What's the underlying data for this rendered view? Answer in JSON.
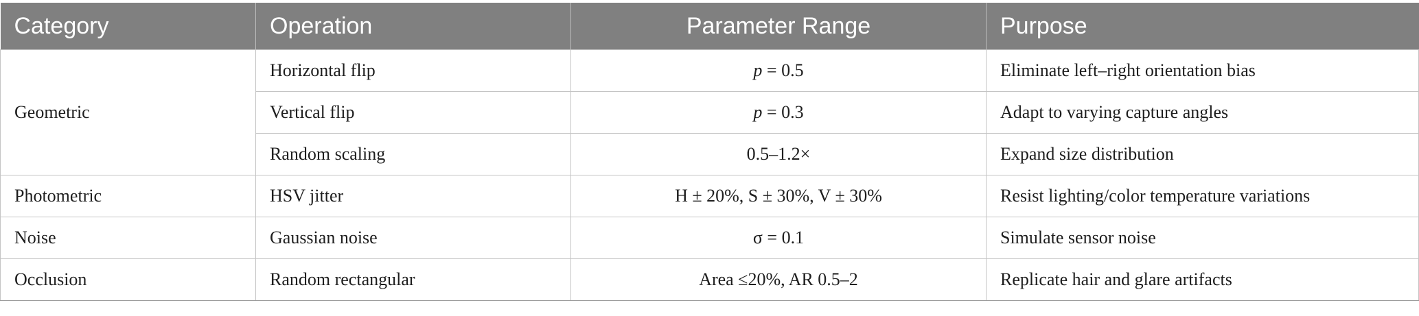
{
  "table": {
    "headers": [
      "Category",
      "Operation",
      "Parameter Range",
      "Purpose"
    ],
    "rows": [
      {
        "category": "Geometric",
        "operation": "Horizontal flip",
        "param_var": "p",
        "param_rest": " = 0.5",
        "purpose": "Eliminate left–right orientation bias"
      },
      {
        "operation": "Vertical flip",
        "param_var": "p",
        "param_rest": " = 0.3",
        "purpose": "Adapt to varying capture angles"
      },
      {
        "operation": "Random scaling",
        "param": "0.5–1.2×",
        "purpose": "Expand size distribution"
      },
      {
        "category": "Photometric",
        "operation": "HSV jitter",
        "param": "H ± 20%, S ± 30%, V ± 30%",
        "purpose": "Resist lighting/color temperature variations"
      },
      {
        "category": "Noise",
        "operation": "Gaussian noise",
        "param": "σ = 0.1",
        "purpose": "Simulate sensor noise"
      },
      {
        "category": "Occlusion",
        "operation": "Random rectangular",
        "param": "Area ≤20%, AR 0.5–2",
        "purpose": "Replicate hair and glare artifacts"
      }
    ]
  },
  "colors": {
    "header_bg": "#808080",
    "header_text": "#ffffff",
    "grid": "#c4c4c4"
  }
}
